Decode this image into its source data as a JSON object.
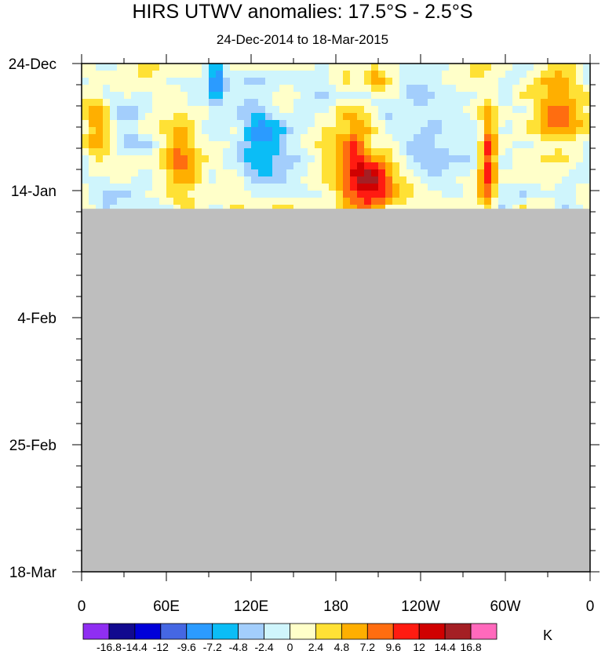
{
  "chart_data": {
    "type": "heatmap",
    "title": "HIRS UTWV anomalies: 17.5°S - 2.5°S",
    "subtitle": "24-Dec-2014 to 18-Mar-2015",
    "xlabel": "",
    "ylabel": "",
    "x_ticks": [
      "0",
      "60E",
      "120E",
      "180",
      "120W",
      "60W",
      "0"
    ],
    "x_range_deg_east": [
      0,
      360
    ],
    "y_ticks": [
      "24-Dec",
      "14-Jan",
      "4-Feb",
      "25-Feb",
      "18-Mar"
    ],
    "y_range": [
      "2014-12-24",
      "2015-03-18"
    ],
    "data_end_date": "2015-01-17",
    "missing_color": "#bebebe",
    "units": "K",
    "colorbar": {
      "levels": [
        "-16.8",
        "-14.4",
        "-12",
        "-9.6",
        "-7.2",
        "-4.8",
        "-2.4",
        "0",
        "2.4",
        "4.8",
        "7.2",
        "9.6",
        "12",
        "14.4",
        "16.8"
      ],
      "colors": [
        "#8f2ef2",
        "#120a8f",
        "#0000d9",
        "#4567e3",
        "#2b9bff",
        "#0bbdf6",
        "#a3cefc",
        "#cff5fc",
        "#ffffc9",
        "#ffe135",
        "#ffaf00",
        "#ff6d10",
        "#ff1b11",
        "#d00101",
        "#a41f24",
        "#ff69bc"
      ]
    },
    "anomaly_features": [
      {
        "lon_from": 0,
        "lon_to": 20,
        "date_from": "2014-12-27",
        "date_to": "2015-01-10",
        "anomaly_k": 5.5
      },
      {
        "lon_from": 22,
        "lon_to": 45,
        "date_from": "2014-12-28",
        "date_to": "2015-01-12",
        "anomaly_k": -2.5
      },
      {
        "lon_from": 55,
        "lon_to": 80,
        "date_from": "2015-01-02",
        "date_to": "2015-01-16",
        "anomaly_k": 8.0
      },
      {
        "lon_from": 90,
        "lon_to": 100,
        "date_from": "2014-12-24",
        "date_to": "2014-12-30",
        "anomaly_k": -11.0
      },
      {
        "lon_from": 110,
        "lon_to": 145,
        "date_from": "2014-12-31",
        "date_to": "2015-01-12",
        "anomaly_k": -8.0
      },
      {
        "lon_from": 180,
        "lon_to": 205,
        "date_from": "2015-01-02",
        "date_to": "2015-01-17",
        "anomaly_k": 11.0
      },
      {
        "lon_from": 195,
        "lon_to": 222,
        "date_from": "2015-01-08",
        "date_to": "2015-01-17",
        "anomaly_k": 12.0
      },
      {
        "lon_from": 200,
        "lon_to": 215,
        "date_from": "2014-12-24",
        "date_to": "2014-12-29",
        "anomaly_k": 6.5
      },
      {
        "lon_from": 230,
        "lon_to": 260,
        "date_from": "2014-12-30",
        "date_to": "2015-01-12",
        "anomaly_k": -3.5
      },
      {
        "lon_from": 283,
        "lon_to": 293,
        "date_from": "2014-12-31",
        "date_to": "2015-01-17",
        "anomaly_k": 11.5
      },
      {
        "lon_from": 320,
        "lon_to": 355,
        "date_from": "2014-12-24",
        "date_to": "2015-01-08",
        "anomaly_k": 6.0
      }
    ]
  }
}
